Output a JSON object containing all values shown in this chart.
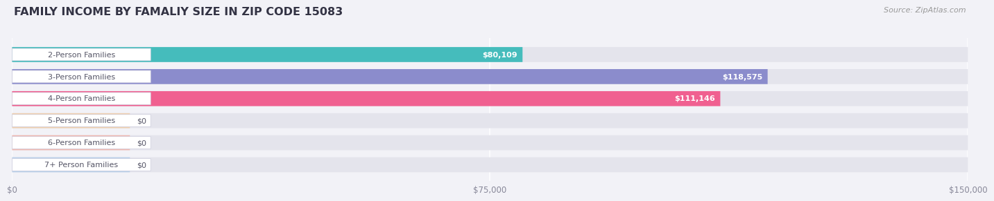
{
  "title": "FAMILY INCOME BY FAMALIY SIZE IN ZIP CODE 15083",
  "source": "Source: ZipAtlas.com",
  "categories": [
    "2-Person Families",
    "3-Person Families",
    "4-Person Families",
    "5-Person Families",
    "6-Person Families",
    "7+ Person Families"
  ],
  "values": [
    80109,
    118575,
    111146,
    0,
    0,
    0
  ],
  "bar_colors": [
    "#45bcbc",
    "#8b8ccc",
    "#f06090",
    "#f5c896",
    "#f5a898",
    "#a8c8e8"
  ],
  "value_labels": [
    "$80,109",
    "$118,575",
    "$111,146",
    "$0",
    "$0",
    "$0"
  ],
  "xlim": [
    0,
    150000
  ],
  "xticks": [
    0,
    75000,
    150000
  ],
  "xticklabels": [
    "$0",
    "$75,000",
    "$150,000"
  ],
  "background_color": "#f2f2f7",
  "bar_background": "#e4e4ec",
  "bar_height": 0.68,
  "title_fontsize": 11.5,
  "source_fontsize": 8,
  "label_fontsize": 8,
  "value_fontsize": 8,
  "label_box_color": "#ffffff",
  "label_text_color": "#555566"
}
